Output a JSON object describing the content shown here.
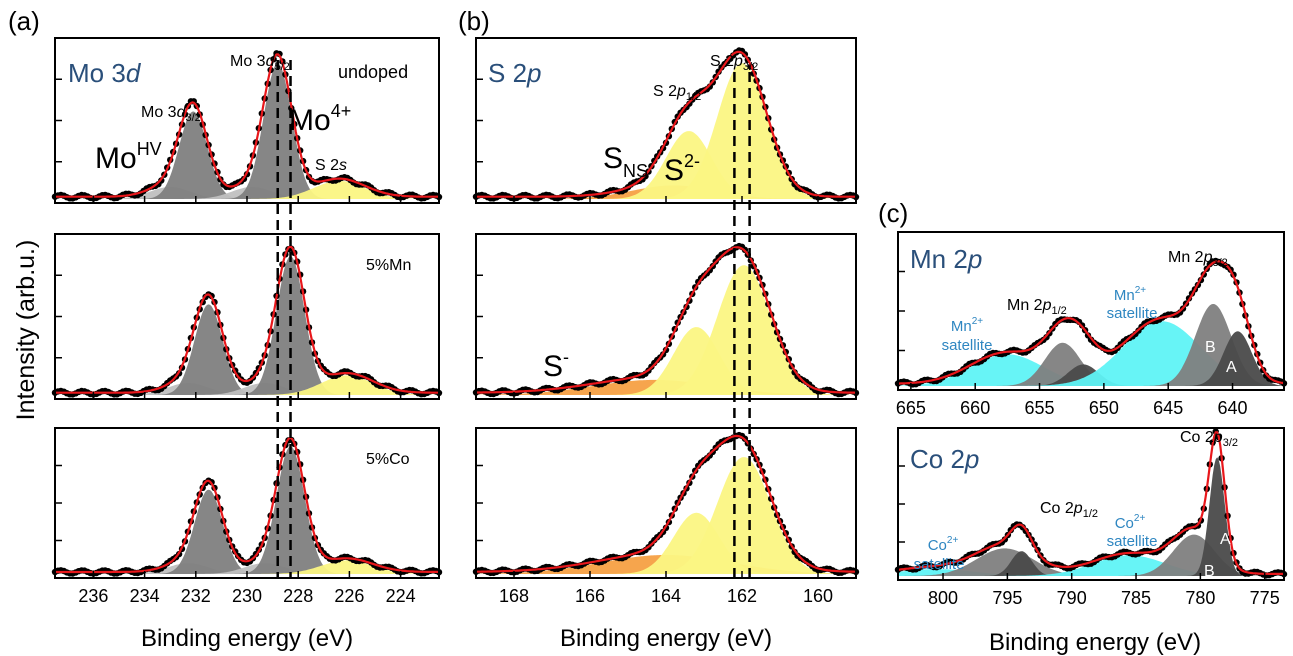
{
  "figure": {
    "y_axis_label": "Intensity (arb.u.)",
    "panel_a_letter": "(a)",
    "panel_b_letter": "(b)",
    "panel_c_letter": "(c)"
  },
  "colors": {
    "fit": "#e8171b",
    "data": "#000000",
    "dark_gray": "#4a4a4a",
    "mid_gray": "#7f7f7f",
    "light_gray": "#c0c0c0",
    "yellow": "#fbf583",
    "orange": "#f5a043",
    "cyan": "#5ff3f6",
    "label_blue": "#2a4f7a",
    "satellite_blue": "#2e86c1"
  },
  "chart_data": [
    {
      "type": "line",
      "panel": "a",
      "title": "Mo 3d",
      "xlabel": "Binding energy (eV)",
      "ylabel": "Intensity (arb.u.)",
      "xlim": [
        237.5,
        222.5
      ],
      "xticks": [
        236,
        234,
        232,
        230,
        228,
        226,
        224
      ],
      "dashed_lines": [
        228.8,
        228.3
      ],
      "subplots": [
        {
          "label": "undoped",
          "peaks": [
            {
              "name": "MoHV",
              "center": 233.0,
              "width": 0.8,
              "amp": 0.08,
              "color": "light_gray"
            },
            {
              "name": "Mo 3d3/2",
              "center": 232.1,
              "width": 0.55,
              "amp": 0.58,
              "color": "mid_gray"
            },
            {
              "name": "MoHV",
              "center": 229.8,
              "width": 0.8,
              "amp": 0.08,
              "color": "light_gray"
            },
            {
              "name": "Mo 3d5/2",
              "center": 228.8,
              "width": 0.55,
              "amp": 0.9,
              "color": "mid_gray"
            },
            {
              "name": "S 2s",
              "center": 226.4,
              "width": 1.0,
              "amp": 0.12,
              "color": "yellow"
            }
          ]
        },
        {
          "label": "5%Mn",
          "peaks": [
            {
              "name": "MoHV",
              "center": 232.3,
              "width": 0.8,
              "amp": 0.08,
              "color": "light_gray"
            },
            {
              "name": "Mo 3d3/2",
              "center": 231.5,
              "width": 0.55,
              "amp": 0.6,
              "color": "mid_gray"
            },
            {
              "name": "MoHV",
              "center": 229.3,
              "width": 0.8,
              "amp": 0.08,
              "color": "light_gray"
            },
            {
              "name": "Mo 3d5/2",
              "center": 228.3,
              "width": 0.55,
              "amp": 0.92,
              "color": "mid_gray"
            },
            {
              "name": "S 2s",
              "center": 226.1,
              "width": 1.0,
              "amp": 0.13,
              "color": "yellow"
            }
          ]
        },
        {
          "label": "5%Co",
          "peaks": [
            {
              "name": "MoHV",
              "center": 232.3,
              "width": 0.8,
              "amp": 0.08,
              "color": "light_gray"
            },
            {
              "name": "Mo 3d3/2",
              "center": 231.5,
              "width": 0.55,
              "amp": 0.62,
              "color": "mid_gray"
            },
            {
              "name": "MoHV",
              "center": 229.3,
              "width": 0.8,
              "amp": 0.08,
              "color": "light_gray"
            },
            {
              "name": "Mo 3d5/2",
              "center": 228.3,
              "width": 0.55,
              "amp": 0.94,
              "color": "mid_gray"
            },
            {
              "name": "S 2s",
              "center": 226.1,
              "width": 1.0,
              "amp": 0.1,
              "color": "yellow"
            }
          ]
        }
      ],
      "annotations": {
        "mo_hv": "Mo",
        "mo_hv_sup": "HV",
        "mo4": "Mo",
        "mo4_sup": "4+",
        "mo32": "Mo 3",
        "mo32_d": "d",
        "mo32_sub": "3/2",
        "mo52": "Mo 3",
        "mo52_d": "d",
        "mo52_sub": "5/2",
        "s2s": "S 2",
        "s2s_s": "s",
        "title_main": "Mo 3",
        "title_italic": "d"
      }
    },
    {
      "type": "line",
      "panel": "b",
      "title": "S 2p",
      "xlabel": "Binding energy (eV)",
      "xlim": [
        169.0,
        159.0
      ],
      "xticks": [
        168,
        166,
        164,
        162,
        160
      ],
      "dashed_lines": [
        162.2,
        161.8
      ],
      "subplots": [
        {
          "label": "undoped",
          "peaks": [
            {
              "name": "SNS",
              "center": 163.8,
              "width": 1.1,
              "amp": 0.09,
              "color": "orange"
            },
            {
              "name": "S2- 2p1/2",
              "center": 163.4,
              "width": 0.6,
              "amp": 0.45,
              "color": "yellow"
            },
            {
              "name": "S2- 2p3/2",
              "center": 162.0,
              "width": 0.65,
              "amp": 0.9,
              "color": "yellow"
            }
          ]
        },
        {
          "label": "5%Mn",
          "peaks": [
            {
              "name": "S-",
              "center": 164.3,
              "width": 1.6,
              "amp": 0.1,
              "color": "orange"
            },
            {
              "name": "S2- 2p1/2",
              "center": 163.2,
              "width": 0.6,
              "amp": 0.45,
              "color": "yellow"
            },
            {
              "name": "S2- 2p3/2",
              "center": 161.95,
              "width": 0.7,
              "amp": 0.86,
              "color": "yellow"
            }
          ]
        },
        {
          "label": "5%Co",
          "peaks": [
            {
              "name": "S-",
              "center": 164.0,
              "width": 1.7,
              "amp": 0.14,
              "color": "orange"
            },
            {
              "name": "S2- 2p1/2",
              "center": 163.2,
              "width": 0.6,
              "amp": 0.45,
              "color": "yellow"
            },
            {
              "name": "S2- 2p3/2",
              "center": 161.95,
              "width": 0.7,
              "amp": 0.86,
              "color": "yellow"
            }
          ]
        }
      ],
      "annotations": {
        "s2p32": "S 2",
        "s2p32_p": "p",
        "s2p32_sub": "3/2",
        "s2p12": "S 2",
        "s2p12_p": "p",
        "s2p12_sub": "1/2",
        "sns": "S",
        "sns_sub": "NS",
        "s2m": "S",
        "s2m_sup": "2-",
        "sm": "S",
        "sm_sup": "-",
        "title_main": "S 2",
        "title_italic": "p"
      }
    },
    {
      "type": "line",
      "panel": "c-Mn",
      "title": "Mn 2p",
      "xlim": [
        666.0,
        636.0
      ],
      "xticks": [
        665,
        660,
        655,
        650,
        645,
        640
      ],
      "peaks": [
        {
          "name": "Mn2+ satellite",
          "center": 657.5,
          "width": 2.8,
          "amp": 0.22,
          "color": "cyan"
        },
        {
          "name": "Mn 2p1/2",
          "center": 653.2,
          "width": 1.4,
          "amp": 0.3,
          "color": "mid_gray"
        },
        {
          "name": "Mn 2p1/2",
          "center": 651.6,
          "width": 1.2,
          "amp": 0.15,
          "color": "dark_gray"
        },
        {
          "name": "Mn2+ satellite",
          "center": 645.5,
          "width": 3.0,
          "amp": 0.45,
          "color": "cyan"
        },
        {
          "name": "B",
          "center": 641.5,
          "width": 1.4,
          "amp": 0.57,
          "color": "mid_gray"
        },
        {
          "name": "A",
          "center": 639.6,
          "width": 1.1,
          "amp": 0.38,
          "color": "dark_gray"
        }
      ],
      "annotations": {
        "mn32": "Mn 2",
        "mn32_p": "p",
        "mn32_sub": "3/2",
        "mn12": "Mn 2",
        "mn12_p": "p",
        "mn12_sub": "1/2",
        "sat": "Mn",
        "sat_sup": "2+",
        "sat_word": "satellite",
        "peak_a": "A",
        "peak_b": "B",
        "title_main": "Mn 2",
        "title_italic": "p"
      }
    },
    {
      "type": "line",
      "panel": "c-Co",
      "title": "Co 2p",
      "xlabel": "Binding energy (eV)",
      "xlim": [
        803.5,
        773.5
      ],
      "xticks": [
        800,
        795,
        790,
        785,
        780,
        775
      ],
      "peaks": [
        {
          "name": "Co2+ satellite",
          "center": 800.5,
          "width": 3.0,
          "amp": 0.05,
          "color": "cyan"
        },
        {
          "name": "Co 2p1/2",
          "center": 795.2,
          "width": 2.2,
          "amp": 0.2,
          "color": "mid_gray"
        },
        {
          "name": "Co 2p1/2",
          "center": 793.9,
          "width": 0.8,
          "amp": 0.18,
          "color": "dark_gray"
        },
        {
          "name": "Co2+ satellite",
          "center": 785.5,
          "width": 2.8,
          "amp": 0.15,
          "color": "cyan"
        },
        {
          "name": "B",
          "center": 780.5,
          "width": 1.6,
          "amp": 0.3,
          "color": "mid_gray"
        },
        {
          "name": "A",
          "center": 778.7,
          "width": 0.6,
          "amp": 0.86,
          "color": "dark_gray"
        }
      ],
      "annotations": {
        "co32": "Co 2",
        "co32_p": "p",
        "co32_sub": "3/2",
        "co12": "Co 2",
        "co12_p": "p",
        "co12_sub": "1/2",
        "sat": "Co",
        "sat_sup": "2+",
        "sat_word": "satellite",
        "peak_a": "A",
        "peak_b": "B",
        "title_main": "Co 2",
        "title_italic": "p"
      }
    }
  ]
}
